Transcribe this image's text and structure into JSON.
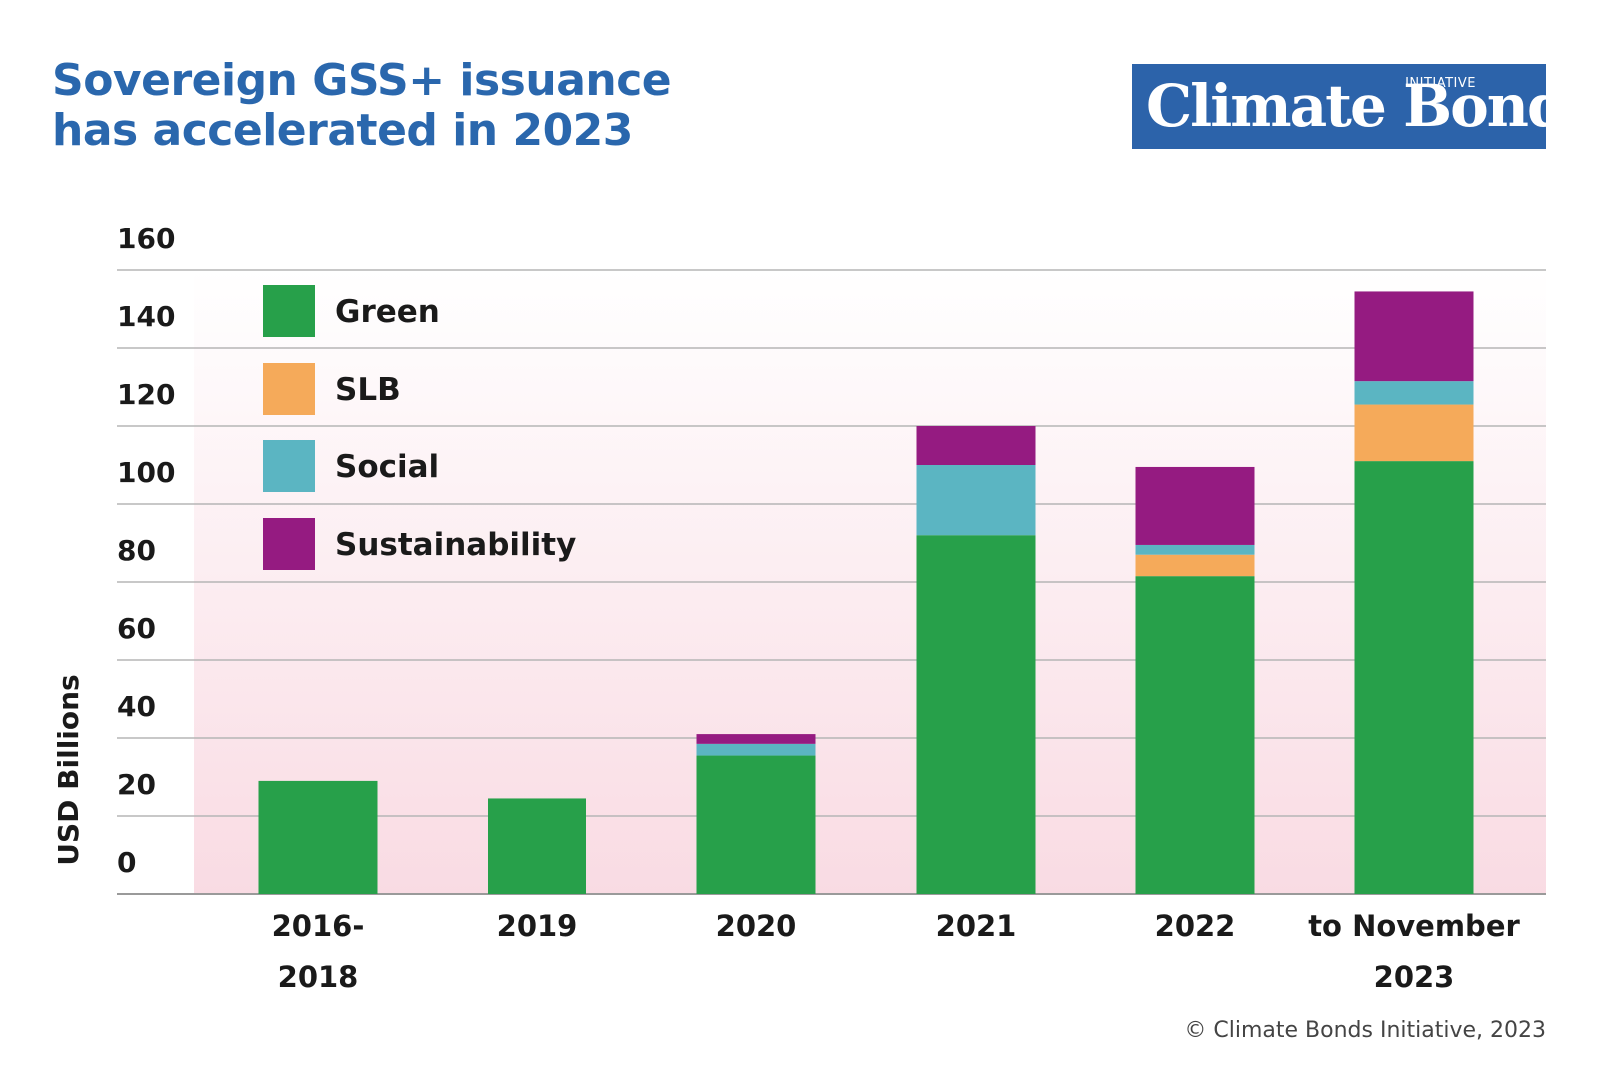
{
  "header": {
    "title_line1": "Sovereign GSS+ issuance",
    "title_line2": "has accelerated in 2023"
  },
  "logo": {
    "main": "Climate Bonds",
    "sub": "INITIATIVE"
  },
  "footer": {
    "copyright": "© Climate Bonds Initiative, 2023"
  },
  "chart_data": {
    "type": "bar",
    "stacked": true,
    "title": "Sovereign GSS+ issuance has accelerated in 2023",
    "ylabel": "USD Billions",
    "xlabel": "",
    "ylim": [
      0,
      160
    ],
    "yticks": [
      0,
      20,
      40,
      60,
      80,
      100,
      120,
      140,
      160
    ],
    "grid": true,
    "legend_position": "top-left",
    "categories": [
      [
        "2016-",
        "2018"
      ],
      [
        "2019"
      ],
      [
        "2020"
      ],
      [
        "2021"
      ],
      [
        "2022"
      ],
      [
        "to November",
        "2023"
      ]
    ],
    "series": [
      {
        "name": "Green",
        "color": "#27a04a",
        "values": [
          29,
          24.5,
          35.5,
          92,
          81.5,
          111
        ]
      },
      {
        "name": "SLB",
        "color": "#f5aa5a",
        "values": [
          0,
          0,
          0,
          0,
          5.5,
          14.5
        ]
      },
      {
        "name": "Social",
        "color": "#5bb5c2",
        "values": [
          0,
          0,
          3,
          18,
          2.5,
          6
        ]
      },
      {
        "name": "Sustainability",
        "color": "#951b81",
        "values": [
          0,
          0,
          2.5,
          10,
          20,
          23
        ]
      }
    ]
  }
}
